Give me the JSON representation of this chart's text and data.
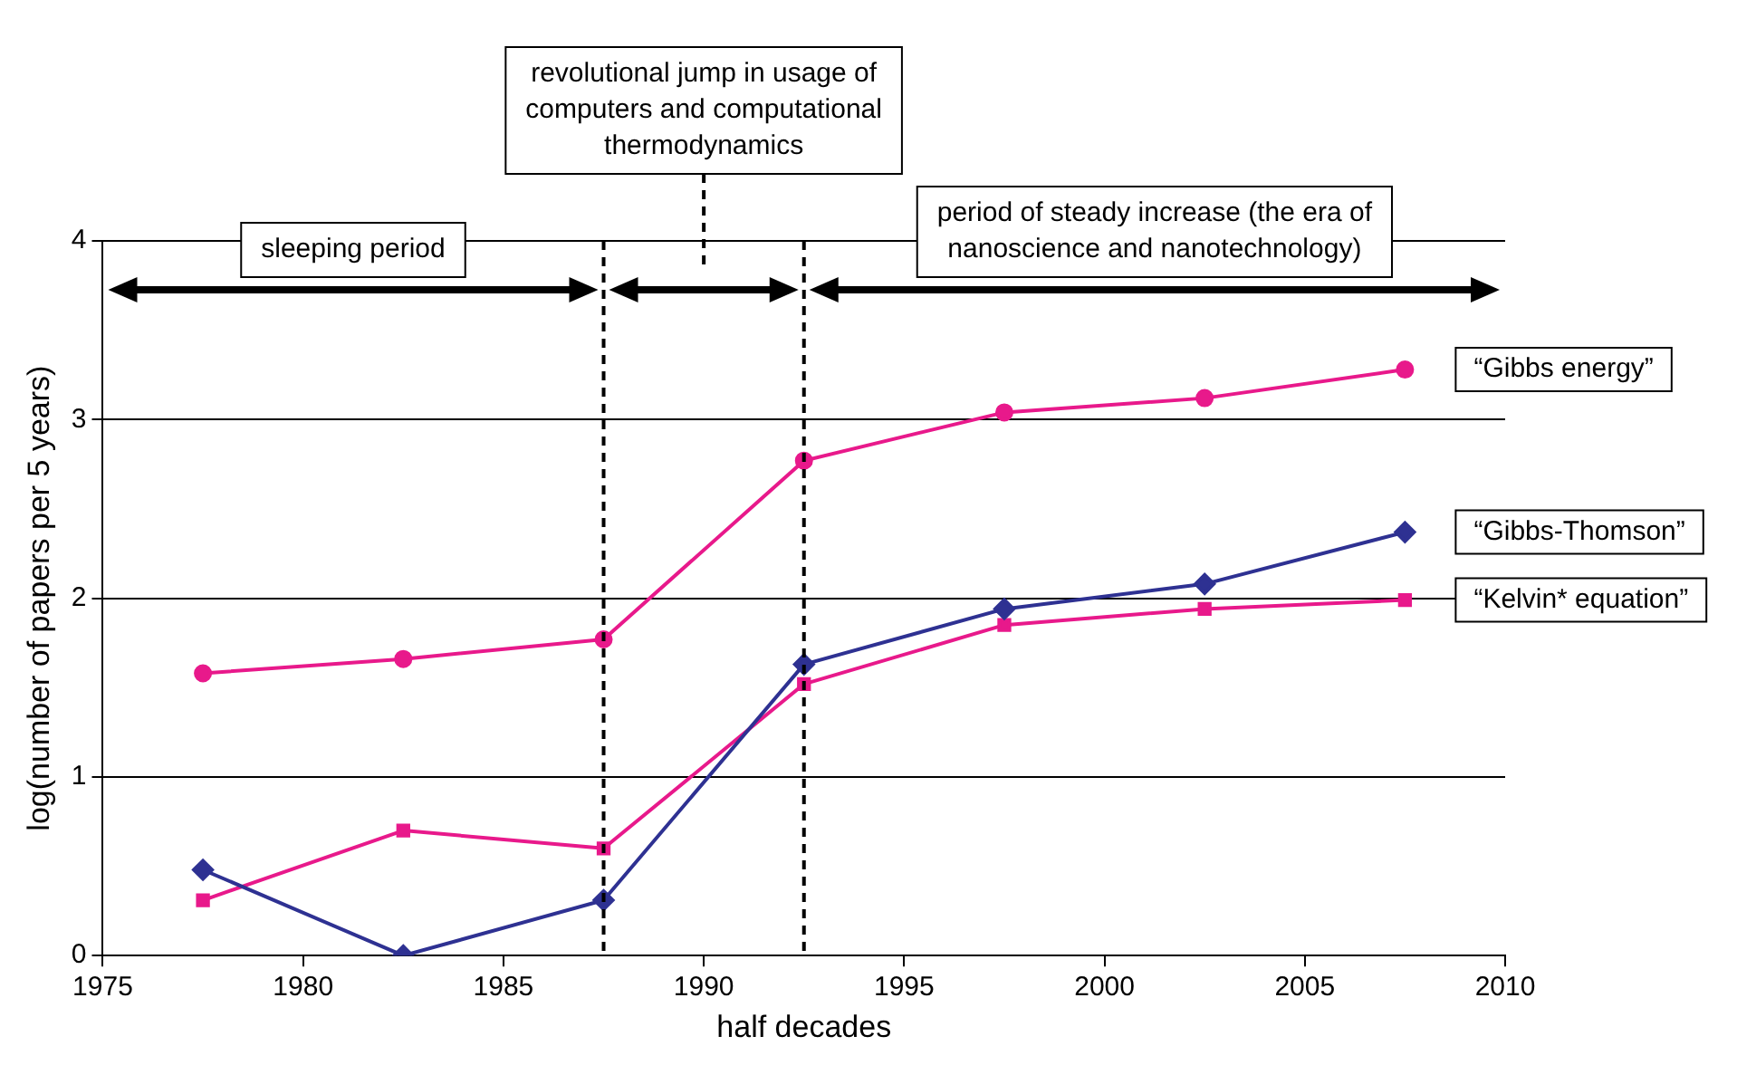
{
  "chart_data": {
    "type": "line",
    "xlabel": "half decades",
    "ylabel": "log(number of papers per 5 years)",
    "x": [
      1977.5,
      1982.5,
      1987.5,
      1992.5,
      1997.5,
      2002.5,
      2007.5
    ],
    "series": [
      {
        "name": "“Gibbs energy”",
        "color": "#e8198b",
        "marker": "circle",
        "values": [
          1.58,
          1.66,
          1.77,
          2.77,
          3.04,
          3.12,
          3.28
        ]
      },
      {
        "name": "“Gibbs-Thomson”",
        "color": "#2e3192",
        "marker": "diamond",
        "values": [
          0.48,
          0,
          0.31,
          1.63,
          1.94,
          2.08,
          2.37
        ]
      },
      {
        "name": "“Kelvin* equation”",
        "color": "#e8198b",
        "marker": "square",
        "values": [
          0.31,
          0.7,
          0.6,
          1.52,
          1.85,
          1.94,
          1.99
        ]
      }
    ],
    "xlim": [
      1975,
      2010
    ],
    "xticks": [
      1975,
      1980,
      1985,
      1990,
      1995,
      2000,
      2005,
      2010
    ],
    "ylim": [
      0,
      4
    ],
    "yticks": [
      0,
      1,
      2,
      3,
      4
    ],
    "grid": "y",
    "legend": false,
    "ref_lines": [
      {
        "axis": "x",
        "value": 1987.5,
        "color": "#000000",
        "line_style": "dashed"
      },
      {
        "axis": "x",
        "value": 1992.5,
        "color": "#000000",
        "line_style": "dashed"
      }
    ],
    "annotations": [
      "sleeping period",
      "revolutional jump in usage of\ncomputers and computational\nthermodynamics",
      "period of steady increase (the era of\nnanoscience and nanotechnology)"
    ]
  }
}
